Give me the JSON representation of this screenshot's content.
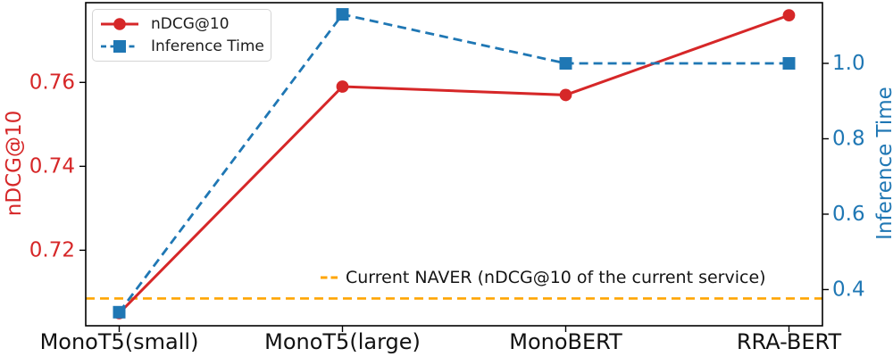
{
  "chart_data": {
    "type": "line",
    "categories": [
      "MonoT5(small)",
      "MonoT5(large)",
      "MonoBERT",
      "RRA-BERT"
    ],
    "series": [
      {
        "name": "nDCG@10",
        "axis": "left",
        "color": "#d62728",
        "marker": "circle",
        "linestyle": "solid",
        "values": [
          0.705,
          0.759,
          0.757,
          0.776
        ]
      },
      {
        "name": "Inference Time",
        "axis": "right",
        "color": "#1f77b4",
        "marker": "square",
        "linestyle": "dashed",
        "values": [
          0.34,
          1.13,
          1.0,
          1.0
        ]
      }
    ],
    "left_axis": {
      "label": "nDCG@10",
      "color": "#d62728",
      "tick_labels": [
        "0.72",
        "0.74",
        "0.76"
      ],
      "ylim": [
        0.702,
        0.779
      ]
    },
    "right_axis": {
      "label": "Inference Time",
      "color": "#1f77b4",
      "tick_labels": [
        "0.4",
        "0.6",
        "0.8",
        "1.0"
      ],
      "ylim": [
        0.304,
        1.161
      ]
    },
    "reference_line": {
      "value": 0.7085,
      "axis": "left",
      "color": "#ffa500",
      "style": "dashed",
      "label": "Current NAVER (nDCG@10 of the current service)"
    },
    "legend": {
      "position": "upper left",
      "entries": [
        "nDCG@10",
        "Inference Time"
      ]
    },
    "grid": false,
    "title": ""
  }
}
